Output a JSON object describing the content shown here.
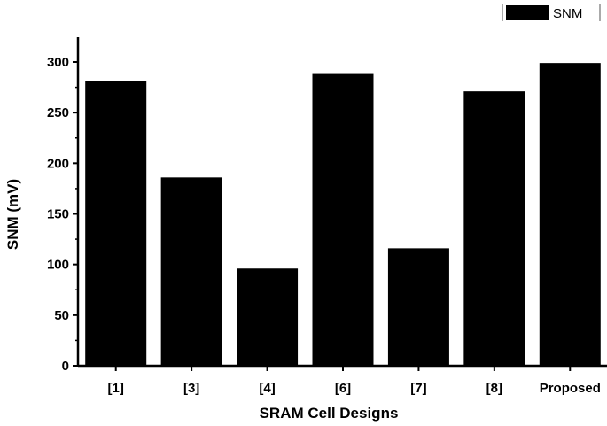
{
  "chart_data": {
    "type": "bar",
    "categories": [
      "[1]",
      "[3]",
      "[4]",
      "[6]",
      "[7]",
      "[8]",
      "Proposed"
    ],
    "series": [
      {
        "name": "SNM",
        "values": [
          281,
          186,
          96,
          289,
          116,
          271,
          299
        ],
        "color": "#000000"
      }
    ],
    "xlabel": "SRAM Cell Designs",
    "ylabel": "SNM (mV)",
    "ylim": [
      0,
      300
    ],
    "yticks": [
      0,
      50,
      100,
      150,
      200,
      250,
      300
    ],
    "grid": false,
    "legend": "top-right"
  }
}
